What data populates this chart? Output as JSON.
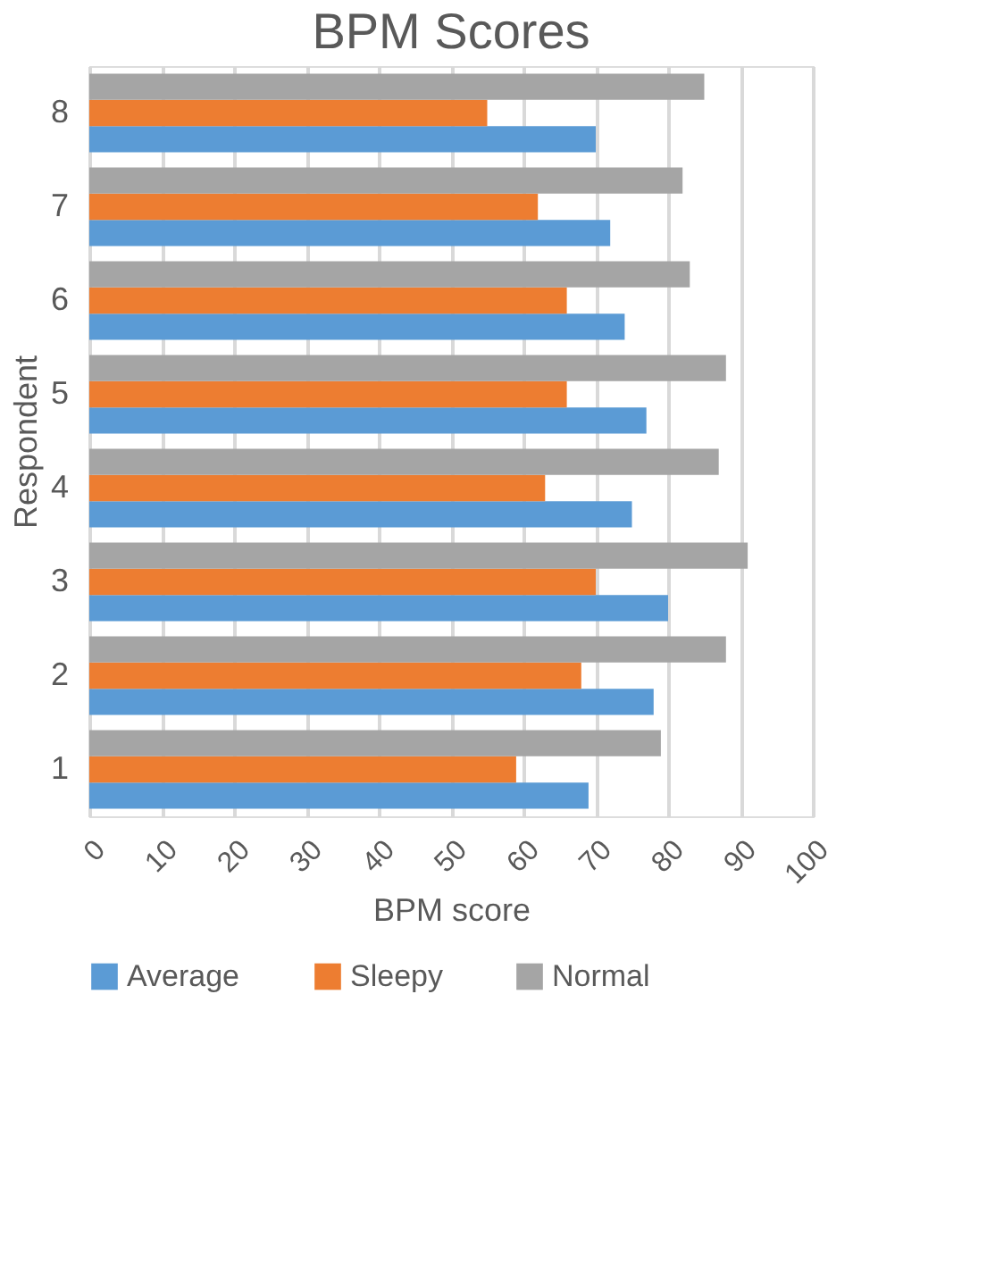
{
  "chart_data": {
    "type": "bar",
    "orientation": "horizontal",
    "title": "BPM Scores",
    "xlabel": "BPM score",
    "ylabel": "Respondent",
    "categories": [
      "8",
      "7",
      "6",
      "5",
      "4",
      "3",
      "2",
      "1"
    ],
    "series": [
      {
        "name": "Average",
        "color": "#5b9bd5",
        "values": [
          70,
          72,
          74,
          77,
          75,
          80,
          78,
          69
        ]
      },
      {
        "name": "Sleepy",
        "color": "#ed7d31",
        "values": [
          55,
          62,
          66,
          66,
          63,
          70,
          68,
          59
        ]
      },
      {
        "name": "Normal",
        "color": "#a5a5a5",
        "values": [
          85,
          82,
          83,
          88,
          87,
          91,
          88,
          79
        ]
      }
    ],
    "xlim": [
      0,
      100
    ],
    "xticks": [
      0,
      10,
      20,
      30,
      40,
      50,
      60,
      70,
      80,
      90,
      100
    ],
    "grid": "x",
    "legend": "bottom"
  }
}
